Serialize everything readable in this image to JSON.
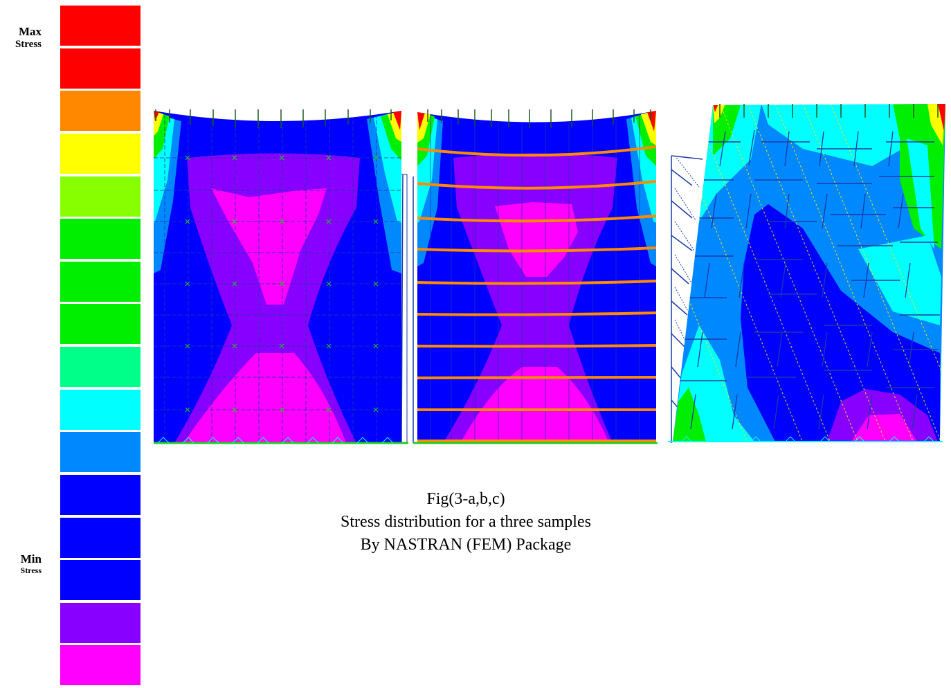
{
  "legend": {
    "max_label_line1": "Max",
    "max_label_line2": "Stress",
    "min_label_line1": "Min",
    "min_label_line2": "Stress",
    "colors": [
      "#ff0000",
      "#ff0000",
      "#ff8800",
      "#ffff00",
      "#88ff00",
      "#00ee00",
      "#00ee00",
      "#00ee00",
      "#00ff88",
      "#00ffff",
      "#0088ff",
      "#0000ff",
      "#0000ff",
      "#0000ff",
      "#8800ff",
      "#ff00ff"
    ]
  },
  "palette": {
    "red": "#ff0000",
    "orange": "#ff8800",
    "yellow": "#ffff00",
    "lime": "#88ff00",
    "green": "#00ee00",
    "teal": "#00ff88",
    "cyan": "#00ffff",
    "light_blue": "#0088ff",
    "blue": "#0000ff",
    "violet": "#8800ff",
    "magenta": "#ff00ff",
    "mesh": "#1a3aa8",
    "tick": "#1a5a1a",
    "beam": "#ff8a00",
    "node": "#22cc22"
  },
  "figures": [
    {
      "id": "a",
      "description_icon": "stress-contour-panel-a"
    },
    {
      "id": "b",
      "description_icon": "stress-contour-panel-b"
    },
    {
      "id": "c",
      "description_icon": "stress-contour-panel-c"
    }
  ],
  "caption": {
    "line1": "Fig(3-a,b,c)",
    "line2": "Stress distribution for a three samples",
    "line3": "By NASTRAN (FEM) Package"
  }
}
